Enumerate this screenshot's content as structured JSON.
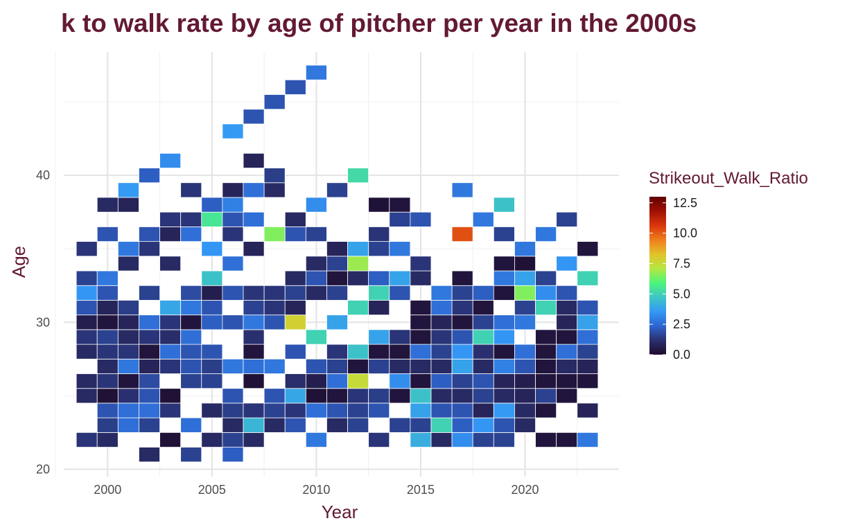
{
  "chart_data": {
    "type": "heatmap",
    "title": "k to walk rate by age of pitcher per year in the 2000s",
    "xlabel": "Year",
    "ylabel": "Age",
    "xlim": [
      1997.5,
      2024.5
    ],
    "ylim": [
      19.5,
      48.4
    ],
    "x_ticks": [
      2000,
      2005,
      2010,
      2015,
      2020
    ],
    "y_ticks": [
      20,
      30,
      40
    ],
    "grid": true,
    "legend": {
      "title": "Strikeout_Walk_Ratio",
      "position": "right",
      "range": [
        0,
        13
      ],
      "ticks": [
        "0.0",
        "2.5",
        "5.0",
        "7.5",
        "10.0",
        "12.5"
      ],
      "colors": [
        "#1e0c2c",
        "#2a2f6e",
        "#2e65cf",
        "#3498f5",
        "#3ec6c4",
        "#4cf57a",
        "#b6e641",
        "#e2c22a",
        "#ef7d1c",
        "#d9360e",
        "#a01004",
        "#600000"
      ]
    },
    "points": [
      [
        1999,
        22,
        1.3
      ],
      [
        1999,
        25,
        1
      ],
      [
        1999,
        26,
        1
      ],
      [
        1999,
        28,
        1
      ],
      [
        1999,
        29,
        1.3
      ],
      [
        1999,
        30,
        0.6
      ],
      [
        1999,
        31,
        2
      ],
      [
        1999,
        32,
        3.5
      ],
      [
        1999,
        33,
        1.6
      ],
      [
        1999,
        35,
        1.3
      ],
      [
        2000,
        22,
        1
      ],
      [
        2000,
        23,
        1.5
      ],
      [
        2000,
        24,
        2
      ],
      [
        2000,
        25,
        0.2
      ],
      [
        2000,
        26,
        1.3
      ],
      [
        2000,
        27,
        1
      ],
      [
        2000,
        28,
        1.3
      ],
      [
        2000,
        29,
        1.6
      ],
      [
        2000,
        30,
        0.3
      ],
      [
        2000,
        31,
        0.8
      ],
      [
        2000,
        32,
        2
      ],
      [
        2000,
        33,
        2.8
      ],
      [
        2000,
        36,
        2
      ],
      [
        2000,
        38,
        1
      ],
      [
        2001,
        23,
        2.6
      ],
      [
        2001,
        24,
        2.6
      ],
      [
        2001,
        25,
        1.2
      ],
      [
        2001,
        26,
        0.3
      ],
      [
        2001,
        27,
        2.8
      ],
      [
        2001,
        28,
        1.3
      ],
      [
        2001,
        29,
        1
      ],
      [
        2001,
        30,
        0.8
      ],
      [
        2001,
        31,
        1.5
      ],
      [
        2001,
        34,
        1
      ],
      [
        2001,
        35,
        2.8
      ],
      [
        2001,
        38,
        0.8
      ],
      [
        2001,
        39,
        3.6
      ],
      [
        2002,
        21,
        1
      ],
      [
        2002,
        23,
        1.6
      ],
      [
        2002,
        24,
        2.6
      ],
      [
        2002,
        25,
        2
      ],
      [
        2002,
        26,
        1.8
      ],
      [
        2002,
        27,
        0.8
      ],
      [
        2002,
        28,
        0.3
      ],
      [
        2002,
        29,
        1.3
      ],
      [
        2002,
        30,
        2.6
      ],
      [
        2002,
        32,
        1.6
      ],
      [
        2002,
        35,
        1.3
      ],
      [
        2002,
        36,
        2
      ],
      [
        2002,
        40,
        2.2
      ],
      [
        2003,
        22,
        0.2
      ],
      [
        2003,
        24,
        1.3
      ],
      [
        2003,
        25,
        0.2
      ],
      [
        2003,
        27,
        1.3
      ],
      [
        2003,
        28,
        2.6
      ],
      [
        2003,
        29,
        1.1
      ],
      [
        2003,
        30,
        1.3
      ],
      [
        2003,
        31,
        3.9
      ],
      [
        2003,
        34,
        1
      ],
      [
        2003,
        36,
        0.8
      ],
      [
        2003,
        37,
        1.3
      ],
      [
        2003,
        41,
        3.3
      ],
      [
        2004,
        21,
        1.6
      ],
      [
        2004,
        23,
        2.6
      ],
      [
        2004,
        26,
        1.6
      ],
      [
        2004,
        27,
        2
      ],
      [
        2004,
        28,
        2
      ],
      [
        2004,
        29,
        2.6
      ],
      [
        2004,
        30,
        0.3
      ],
      [
        2004,
        31,
        2.8
      ],
      [
        2004,
        32,
        1.8
      ],
      [
        2004,
        36,
        2.6
      ],
      [
        2004,
        37,
        1.3
      ],
      [
        2004,
        39,
        1.3
      ],
      [
        2005,
        22,
        1
      ],
      [
        2005,
        24,
        1
      ],
      [
        2005,
        26,
        1.6
      ],
      [
        2005,
        27,
        1.5
      ],
      [
        2005,
        28,
        2
      ],
      [
        2005,
        30,
        2.2
      ],
      [
        2005,
        31,
        2
      ],
      [
        2005,
        32,
        0.6
      ],
      [
        2005,
        33,
        4.6
      ],
      [
        2005,
        35,
        3.5
      ],
      [
        2005,
        37,
        5.5
      ],
      [
        2005,
        38,
        2.2
      ],
      [
        2006,
        21,
        2.2
      ],
      [
        2006,
        22,
        1.6
      ],
      [
        2006,
        23,
        1
      ],
      [
        2006,
        24,
        1.5
      ],
      [
        2006,
        25,
        2
      ],
      [
        2006,
        27,
        2.8
      ],
      [
        2006,
        30,
        2
      ],
      [
        2006,
        32,
        2
      ],
      [
        2006,
        34,
        2.6
      ],
      [
        2006,
        36,
        1.3
      ],
      [
        2006,
        37,
        2
      ],
      [
        2006,
        38,
        3
      ],
      [
        2006,
        39,
        0.8
      ],
      [
        2006,
        43,
        3.6
      ],
      [
        2007,
        22,
        1
      ],
      [
        2007,
        23,
        4.3
      ],
      [
        2007,
        24,
        1.3
      ],
      [
        2007,
        26,
        0.2
      ],
      [
        2007,
        27,
        2.6
      ],
      [
        2007,
        28,
        0.3
      ],
      [
        2007,
        29,
        1.2
      ],
      [
        2007,
        30,
        2.8
      ],
      [
        2007,
        31,
        1.6
      ],
      [
        2007,
        32,
        1.3
      ],
      [
        2007,
        35,
        0.8
      ],
      [
        2007,
        37,
        2.6
      ],
      [
        2007,
        39,
        2.6
      ],
      [
        2007,
        41,
        0.8
      ],
      [
        2007,
        44,
        2
      ],
      [
        2008,
        23,
        1
      ],
      [
        2008,
        24,
        1.6
      ],
      [
        2008,
        25,
        2
      ],
      [
        2008,
        27,
        2.8
      ],
      [
        2008,
        30,
        2
      ],
      [
        2008,
        31,
        1.3
      ],
      [
        2008,
        32,
        1.3
      ],
      [
        2008,
        36,
        6.5
      ],
      [
        2008,
        39,
        1
      ],
      [
        2008,
        40,
        1.5
      ],
      [
        2008,
        45,
        2
      ],
      [
        2009,
        23,
        2
      ],
      [
        2009,
        24,
        1.3
      ],
      [
        2009,
        25,
        3.9
      ],
      [
        2009,
        26,
        1.1
      ],
      [
        2009,
        28,
        2
      ],
      [
        2009,
        30,
        7.8
      ],
      [
        2009,
        31,
        0.8
      ],
      [
        2009,
        32,
        1.6
      ],
      [
        2009,
        33,
        1
      ],
      [
        2009,
        36,
        2
      ],
      [
        2009,
        37,
        1
      ],
      [
        2009,
        46,
        2
      ],
      [
        2010,
        22,
        2.8
      ],
      [
        2010,
        24,
        2.6
      ],
      [
        2010,
        25,
        0.2
      ],
      [
        2010,
        26,
        0.6
      ],
      [
        2010,
        27,
        2
      ],
      [
        2010,
        29,
        5
      ],
      [
        2010,
        32,
        1
      ],
      [
        2010,
        33,
        2
      ],
      [
        2010,
        34,
        1
      ],
      [
        2010,
        36,
        1.6
      ],
      [
        2010,
        38,
        3.3
      ],
      [
        2010,
        47,
        2.8
      ],
      [
        2011,
        23,
        1
      ],
      [
        2011,
        24,
        2
      ],
      [
        2011,
        25,
        0.3
      ],
      [
        2011,
        26,
        2.6
      ],
      [
        2011,
        27,
        1.6
      ],
      [
        2011,
        28,
        1.3
      ],
      [
        2011,
        30,
        3.8
      ],
      [
        2011,
        32,
        1.6
      ],
      [
        2011,
        33,
        0.3
      ],
      [
        2011,
        34,
        1.6
      ],
      [
        2011,
        35,
        0.8
      ],
      [
        2011,
        39,
        1.6
      ],
      [
        2012,
        23,
        1.6
      ],
      [
        2012,
        24,
        1.6
      ],
      [
        2012,
        25,
        1.3
      ],
      [
        2012,
        26,
        7.5
      ],
      [
        2012,
        27,
        0.3
      ],
      [
        2012,
        28,
        4.6
      ],
      [
        2012,
        31,
        5
      ],
      [
        2012,
        33,
        1
      ],
      [
        2012,
        34,
        6.8
      ],
      [
        2012,
        35,
        3.8
      ],
      [
        2012,
        40,
        5.2
      ],
      [
        2013,
        22,
        1.3
      ],
      [
        2013,
        24,
        2
      ],
      [
        2013,
        25,
        1.5
      ],
      [
        2013,
        27,
        1.6
      ],
      [
        2013,
        28,
        0.3
      ],
      [
        2013,
        29,
        3.8
      ],
      [
        2013,
        31,
        0.8
      ],
      [
        2013,
        32,
        5
      ],
      [
        2013,
        33,
        2.2
      ],
      [
        2013,
        35,
        1.6
      ],
      [
        2013,
        36,
        1.3
      ],
      [
        2013,
        38,
        0.2
      ],
      [
        2014,
        23,
        1.6
      ],
      [
        2014,
        25,
        0.3
      ],
      [
        2014,
        26,
        3.3
      ],
      [
        2014,
        27,
        1
      ],
      [
        2014,
        28,
        0.3
      ],
      [
        2014,
        29,
        1.3
      ],
      [
        2014,
        32,
        2
      ],
      [
        2014,
        33,
        3.8
      ],
      [
        2014,
        35,
        2.8
      ],
      [
        2014,
        37,
        1.6
      ],
      [
        2014,
        38,
        0.3
      ],
      [
        2015,
        22,
        4.1
      ],
      [
        2015,
        23,
        1.6
      ],
      [
        2015,
        24,
        3.8
      ],
      [
        2015,
        25,
        4.6
      ],
      [
        2015,
        26,
        0.3
      ],
      [
        2015,
        27,
        1
      ],
      [
        2015,
        28,
        2.6
      ],
      [
        2015,
        29,
        0.3
      ],
      [
        2015,
        30,
        0.3
      ],
      [
        2015,
        31,
        0.3
      ],
      [
        2015,
        33,
        1
      ],
      [
        2015,
        34,
        1.3
      ],
      [
        2015,
        37,
        2
      ],
      [
        2016,
        22,
        1
      ],
      [
        2016,
        23,
        5
      ],
      [
        2016,
        24,
        2
      ],
      [
        2016,
        25,
        1
      ],
      [
        2016,
        26,
        2.2
      ],
      [
        2016,
        27,
        1
      ],
      [
        2016,
        28,
        1.6
      ],
      [
        2016,
        29,
        1.3
      ],
      [
        2016,
        30,
        0.8
      ],
      [
        2016,
        31,
        2.6
      ],
      [
        2016,
        32,
        2.8
      ],
      [
        2017,
        22,
        3.3
      ],
      [
        2017,
        23,
        2.2
      ],
      [
        2017,
        24,
        2
      ],
      [
        2017,
        25,
        1
      ],
      [
        2017,
        26,
        1.6
      ],
      [
        2017,
        27,
        3.8
      ],
      [
        2017,
        28,
        3.5
      ],
      [
        2017,
        29,
        2
      ],
      [
        2017,
        30,
        0.3
      ],
      [
        2017,
        31,
        1.3
      ],
      [
        2017,
        32,
        1.6
      ],
      [
        2017,
        33,
        0.3
      ],
      [
        2017,
        36,
        10.2
      ],
      [
        2017,
        39,
        2.8
      ],
      [
        2018,
        22,
        1.6
      ],
      [
        2018,
        23,
        3.5
      ],
      [
        2018,
        24,
        0.8
      ],
      [
        2018,
        25,
        1.6
      ],
      [
        2018,
        26,
        2
      ],
      [
        2018,
        27,
        1
      ],
      [
        2018,
        28,
        1.2
      ],
      [
        2018,
        29,
        5
      ],
      [
        2018,
        30,
        1.6
      ],
      [
        2018,
        31,
        0.3
      ],
      [
        2018,
        32,
        2.2
      ],
      [
        2018,
        37,
        2.8
      ],
      [
        2019,
        22,
        1.6
      ],
      [
        2019,
        23,
        2
      ],
      [
        2019,
        24,
        3.6
      ],
      [
        2019,
        25,
        1
      ],
      [
        2019,
        26,
        0.8
      ],
      [
        2019,
        27,
        3
      ],
      [
        2019,
        28,
        0.3
      ],
      [
        2019,
        29,
        3.5
      ],
      [
        2019,
        30,
        2.6
      ],
      [
        2019,
        32,
        0.3
      ],
      [
        2019,
        33,
        2.8
      ],
      [
        2019,
        34,
        0.3
      ],
      [
        2019,
        36,
        1.6
      ],
      [
        2019,
        38,
        4.6
      ],
      [
        2020,
        23,
        1
      ],
      [
        2020,
        24,
        1
      ],
      [
        2020,
        25,
        0.8
      ],
      [
        2020,
        26,
        0.6
      ],
      [
        2020,
        27,
        2
      ],
      [
        2020,
        28,
        2.6
      ],
      [
        2020,
        30,
        2.8
      ],
      [
        2020,
        31,
        1.6
      ],
      [
        2020,
        32,
        6.5
      ],
      [
        2020,
        33,
        3.8
      ],
      [
        2020,
        34,
        0.2
      ],
      [
        2020,
        35,
        2.8
      ],
      [
        2021,
        22,
        0.3
      ],
      [
        2021,
        24,
        0.3
      ],
      [
        2021,
        25,
        1.6
      ],
      [
        2021,
        26,
        0.3
      ],
      [
        2021,
        27,
        0.3
      ],
      [
        2021,
        28,
        0.3
      ],
      [
        2021,
        29,
        0.3
      ],
      [
        2021,
        31,
        5
      ],
      [
        2021,
        32,
        3.3
      ],
      [
        2021,
        33,
        1.6
      ],
      [
        2021,
        36,
        2.8
      ],
      [
        2022,
        22,
        0.3
      ],
      [
        2022,
        25,
        0.3
      ],
      [
        2022,
        26,
        0.3
      ],
      [
        2022,
        27,
        1
      ],
      [
        2022,
        28,
        2.6
      ],
      [
        2022,
        29,
        0.3
      ],
      [
        2022,
        30,
        0.8
      ],
      [
        2022,
        31,
        1
      ],
      [
        2022,
        32,
        2
      ],
      [
        2022,
        34,
        3.5
      ],
      [
        2022,
        37,
        1.6
      ],
      [
        2023,
        22,
        2.8
      ],
      [
        2023,
        24,
        0.8
      ],
      [
        2023,
        26,
        0.3
      ],
      [
        2023,
        27,
        0.8
      ],
      [
        2023,
        28,
        1.6
      ],
      [
        2023,
        29,
        2.6
      ],
      [
        2023,
        30,
        3.8
      ],
      [
        2023,
        31,
        2
      ],
      [
        2023,
        33,
        5
      ],
      [
        2023,
        35,
        0.3
      ]
    ]
  }
}
